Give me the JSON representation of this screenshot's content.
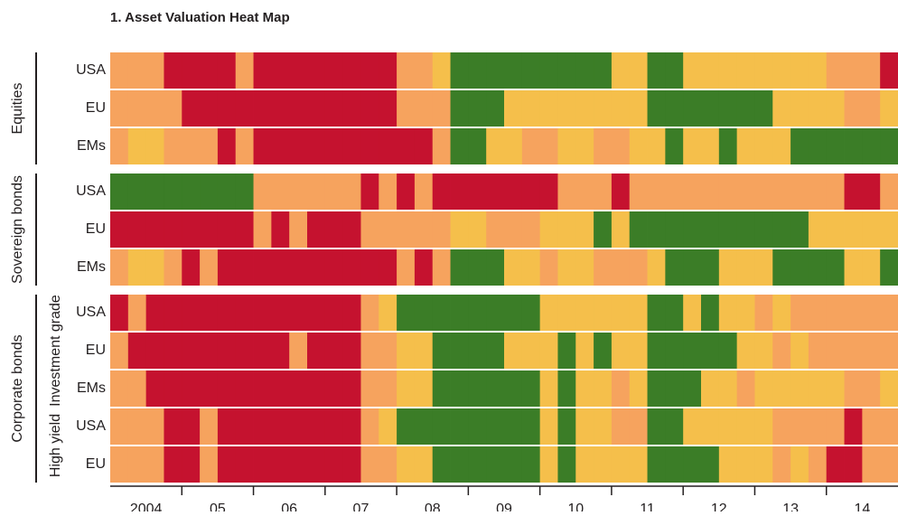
{
  "chart_data": {
    "type": "heatmap",
    "title": "1. Asset Valuation Heat Map",
    "categories": [
      "2004",
      "05",
      "06",
      "07",
      "08",
      "09",
      "10",
      "11",
      "12",
      "13",
      "14"
    ],
    "colors": [
      "#3b7d27",
      "#f5bf4b",
      "#f6a35e",
      "#c5122f"
    ],
    "groups": [
      {
        "name": "Equities",
        "rows": [
          {
            "name": "USA",
            "values": [
              2,
              2,
              2,
              3,
              3,
              3,
              3,
              2,
              3,
              3,
              3,
              3,
              3,
              3,
              3,
              3,
              2,
              2,
              1,
              0,
              0,
              0,
              0,
              0,
              0,
              0,
              0,
              0,
              1,
              1,
              0,
              0,
              1,
              1,
              1,
              1,
              1,
              1,
              1,
              1,
              2,
              2,
              2,
              3
            ]
          },
          {
            "name": "EU",
            "values": [
              2,
              2,
              2,
              2,
              3,
              3,
              3,
              3,
              3,
              3,
              3,
              3,
              3,
              3,
              3,
              3,
              2,
              2,
              2,
              0,
              0,
              0,
              1,
              1,
              1,
              1,
              1,
              1,
              1,
              1,
              0,
              0,
              0,
              0,
              0,
              0,
              0,
              1,
              1,
              1,
              1,
              2,
              2,
              1
            ]
          },
          {
            "name": "EMs",
            "values": [
              2,
              1,
              1,
              2,
              2,
              2,
              3,
              2,
              3,
              3,
              3,
              3,
              3,
              3,
              3,
              3,
              3,
              3,
              2,
              0,
              0,
              1,
              1,
              2,
              2,
              1,
              1,
              2,
              2,
              1,
              1,
              0,
              1,
              1,
              0,
              1,
              1,
              1,
              0,
              0,
              0,
              0,
              0,
              0
            ]
          }
        ]
      },
      {
        "name": "Sovereign bonds",
        "rows": [
          {
            "name": "USA",
            "values": [
              0,
              0,
              0,
              0,
              0,
              0,
              0,
              0,
              2,
              2,
              2,
              2,
              2,
              2,
              3,
              2,
              3,
              2,
              3,
              3,
              3,
              3,
              3,
              3,
              3,
              2,
              2,
              2,
              3,
              2,
              2,
              2,
              2,
              2,
              2,
              2,
              2,
              2,
              2,
              2,
              2,
              3,
              3,
              2
            ]
          },
          {
            "name": "EU",
            "values": [
              3,
              3,
              3,
              3,
              3,
              3,
              3,
              3,
              2,
              3,
              2,
              3,
              3,
              3,
              2,
              2,
              2,
              2,
              2,
              1,
              1,
              2,
              2,
              2,
              1,
              1,
              1,
              0,
              1,
              0,
              0,
              0,
              0,
              0,
              0,
              0,
              0,
              0,
              0,
              1,
              1,
              1,
              1,
              1
            ]
          },
          {
            "name": "EMs",
            "values": [
              2,
              1,
              1,
              2,
              3,
              2,
              3,
              3,
              3,
              3,
              3,
              3,
              3,
              3,
              3,
              3,
              2,
              3,
              2,
              0,
              0,
              0,
              1,
              1,
              2,
              1,
              1,
              2,
              2,
              2,
              1,
              0,
              0,
              0,
              1,
              1,
              1,
              0,
              0,
              0,
              0,
              1,
              1,
              0
            ]
          }
        ]
      },
      {
        "name": "Corporate bonds",
        "subgroups": [
          {
            "name": "Investment grade",
            "rows": [
              {
                "name": "USA",
                "values": [
                  3,
                  2,
                  3,
                  3,
                  3,
                  3,
                  3,
                  3,
                  3,
                  3,
                  3,
                  3,
                  3,
                  3,
                  2,
                  1,
                  0,
                  0,
                  0,
                  0,
                  0,
                  0,
                  0,
                  0,
                  1,
                  1,
                  1,
                  1,
                  1,
                  1,
                  0,
                  0,
                  1,
                  0,
                  1,
                  1,
                  2,
                  1,
                  2,
                  2,
                  2,
                  2,
                  2,
                  2
                ]
              },
              {
                "name": "EU",
                "values": [
                  2,
                  3,
                  3,
                  3,
                  3,
                  3,
                  3,
                  3,
                  3,
                  3,
                  2,
                  3,
                  3,
                  3,
                  2,
                  2,
                  1,
                  1,
                  0,
                  0,
                  0,
                  0,
                  1,
                  1,
                  1,
                  0,
                  1,
                  0,
                  1,
                  1,
                  0,
                  0,
                  0,
                  0,
                  0,
                  1,
                  1,
                  2,
                  1,
                  2,
                  2,
                  2,
                  2,
                  2
                ]
              },
              {
                "name": "EMs",
                "values": [
                  2,
                  2,
                  3,
                  3,
                  3,
                  3,
                  3,
                  3,
                  3,
                  3,
                  3,
                  3,
                  3,
                  3,
                  2,
                  2,
                  1,
                  1,
                  0,
                  0,
                  0,
                  0,
                  0,
                  0,
                  1,
                  0,
                  1,
                  1,
                  2,
                  1,
                  0,
                  0,
                  0,
                  1,
                  1,
                  2,
                  1,
                  1,
                  1,
                  1,
                  1,
                  2,
                  2,
                  1
                ]
              }
            ]
          },
          {
            "name": "High yield",
            "rows": [
              {
                "name": "USA",
                "values": [
                  2,
                  2,
                  2,
                  3,
                  3,
                  2,
                  3,
                  3,
                  3,
                  3,
                  3,
                  3,
                  3,
                  3,
                  2,
                  1,
                  0,
                  0,
                  0,
                  0,
                  0,
                  0,
                  0,
                  0,
                  1,
                  0,
                  1,
                  1,
                  2,
                  2,
                  0,
                  0,
                  1,
                  1,
                  1,
                  1,
                  1,
                  2,
                  2,
                  2,
                  2,
                  3,
                  2,
                  2
                ]
              },
              {
                "name": "EU",
                "values": [
                  2,
                  2,
                  2,
                  3,
                  3,
                  2,
                  3,
                  3,
                  3,
                  3,
                  3,
                  3,
                  3,
                  3,
                  2,
                  2,
                  1,
                  1,
                  0,
                  0,
                  0,
                  0,
                  0,
                  0,
                  1,
                  0,
                  1,
                  1,
                  1,
                  1,
                  0,
                  0,
                  0,
                  0,
                  1,
                  1,
                  1,
                  2,
                  1,
                  2,
                  3,
                  3,
                  2,
                  2
                ]
              }
            ]
          }
        ]
      }
    ]
  }
}
